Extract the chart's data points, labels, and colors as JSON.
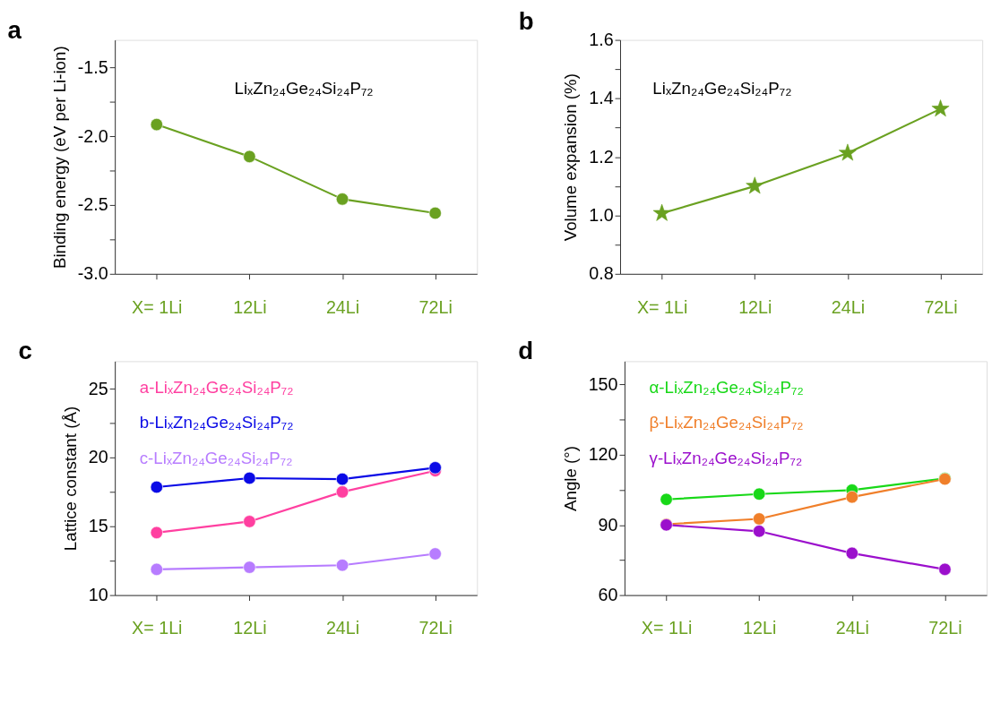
{
  "chart_data": [
    {
      "type": "line",
      "title": "a",
      "ylabel": "Binding energy (eV per Li-ion)",
      "categories": [
        "X= 1Li",
        "12Li",
        "24Li",
        "72Li"
      ],
      "ylim": [
        -3.0,
        -1.3
      ],
      "yticks": [
        {
          "value": -3,
          "label": "-3.0"
        },
        {
          "value": -2.75,
          "label": null
        },
        -2.5,
        {
          "value": -2.25,
          "label": null
        },
        {
          "value": -2,
          "label": "-2.0"
        },
        {
          "value": -1.75,
          "label": null
        },
        -1.5
      ],
      "marker": "circle",
      "grid": false,
      "annotations": [
        "LiₓZn₂₄Ge₂₄Si₂₄P₇₂"
      ],
      "series": [
        {
          "color": "#6aa121",
          "values": [
            -1.915,
            -2.148,
            -2.457,
            -2.559
          ]
        }
      ]
    },
    {
      "type": "line",
      "title": "b",
      "ylabel": "Volume expansion (%)",
      "categories": [
        "X= 1Li",
        "12Li",
        "24Li",
        "72Li"
      ],
      "ylim": [
        0.8,
        1.6
      ],
      "yticks": [
        0.8,
        {
          "value": 0.9,
          "label": null
        },
        {
          "value": 1,
          "label": "1.0"
        },
        {
          "value": 1.1,
          "label": null
        },
        1.2,
        {
          "value": 1.3,
          "label": null
        },
        1.4,
        {
          "value": 1.5,
          "label": null
        },
        1.6
      ],
      "marker": "star",
      "grid": false,
      "annotations": [
        "LiₓZn₂₄Ge₂₄Si₂₄P₇₂"
      ],
      "series": [
        {
          "color": "#6aa121",
          "values": [
            1.007,
            1.1,
            1.213,
            1.364
          ]
        }
      ]
    },
    {
      "type": "line",
      "title": "c",
      "ylabel": "Lattice constant (Å)",
      "categories": [
        "X= 1Li",
        "12Li",
        "24Li",
        "72Li"
      ],
      "ylim": [
        10,
        27
      ],
      "yticks": [
        10,
        {
          "value": 12.5,
          "label": null
        },
        15,
        {
          "value": 17.5,
          "label": null
        },
        20,
        {
          "value": 22.5,
          "label": null
        },
        25
      ],
      "marker": "circle",
      "grid": false,
      "series": [
        {
          "name": "a-LiₓZn₂₄Ge₂₄Si₂₄P₇₂",
          "color": "#ff3fa0",
          "values": [
            14.54,
            15.35,
            17.5,
            19.04
          ]
        },
        {
          "name": "b-LiₓZn₂₄Ge₂₄Si₂₄P₇₂",
          "color": "#0a0ae6",
          "values": [
            17.85,
            18.5,
            18.43,
            19.26
          ]
        },
        {
          "name": "c-LiₓZn₂₄Ge₂₄Si₂₄P₇₂",
          "color": "#b77cff",
          "values": [
            11.87,
            12.02,
            12.17,
            13.0
          ]
        }
      ]
    },
    {
      "type": "line",
      "title": "d",
      "ylabel": "Angle (°)",
      "categories": [
        "X= 1Li",
        "12Li",
        "24Li",
        "72Li"
      ],
      "ylim": [
        60,
        160
      ],
      "yticks": [
        60,
        {
          "value": 75,
          "label": null
        },
        90,
        {
          "value": 105,
          "label": null
        },
        120,
        {
          "value": 135,
          "label": null
        },
        150
      ],
      "marker": "circle",
      "grid": false,
      "series": [
        {
          "name": "α-LiₓZn₂₄Ge₂₄Si₂₄P₇₂",
          "color": "#18d818",
          "values": [
            100.9,
            103.2,
            104.9,
            109.9
          ]
        },
        {
          "name": "β-LiₓZn₂₄Ge₂₄Si₂₄P₇₂",
          "color": "#f07f2a",
          "values": [
            90.3,
            92.6,
            101.9,
            109.6
          ]
        },
        {
          "name": "γ-LiₓZn₂₄Ge₂₄Si₂₄P₇₂",
          "color": "#9b0fcc",
          "values": [
            90.0,
            87.3,
            77.9,
            71.0
          ]
        }
      ]
    }
  ]
}
